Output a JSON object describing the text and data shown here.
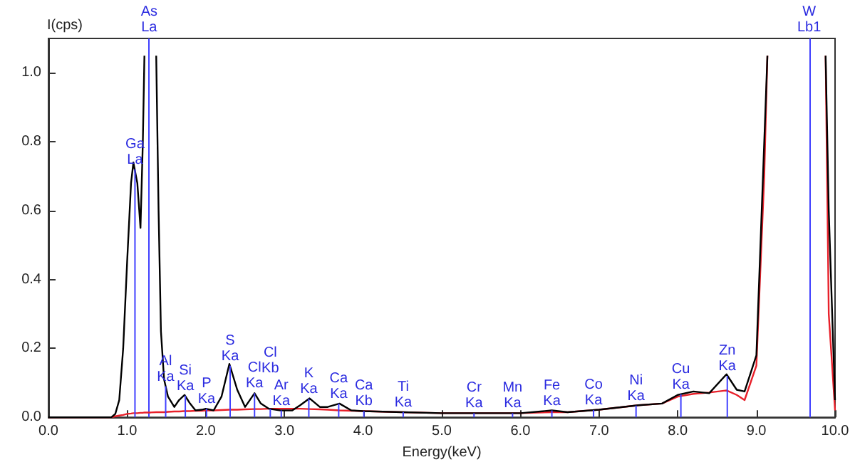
{
  "chart_data": {
    "type": "line",
    "xlabel": "Energy(keV)",
    "ylabel": "I(cps)",
    "x": [
      0,
      0.5,
      0.8,
      0.85,
      0.9,
      0.95,
      1.0,
      1.05,
      1.08,
      1.13,
      1.17,
      1.2,
      1.22,
      1.3,
      1.37,
      1.4,
      1.43,
      1.47,
      1.52,
      1.6,
      1.66,
      1.73,
      1.8,
      1.87,
      1.95,
      2.0,
      2.1,
      2.2,
      2.3,
      2.4,
      2.5,
      2.62,
      2.7,
      2.8,
      2.95,
      3.1,
      3.2,
      3.32,
      3.45,
      3.55,
      3.7,
      3.85,
      4.0,
      4.5,
      5.0,
      5.5,
      6.0,
      6.4,
      6.6,
      7.0,
      7.5,
      7.8,
      8.0,
      8.2,
      8.4,
      8.62,
      8.75,
      8.85,
      9.0,
      9.1,
      9.14,
      9.5,
      9.88,
      9.92,
      10.0
    ],
    "series": [
      {
        "color": "#000000",
        "values": [
          0,
          0,
          0,
          0.01,
          0.05,
          0.2,
          0.45,
          0.68,
          0.74,
          0.68,
          0.55,
          0.8,
          1.05,
          null,
          1.05,
          0.6,
          0.25,
          0.11,
          0.06,
          0.03,
          0.05,
          0.065,
          0.04,
          0.02,
          0.022,
          0.025,
          0.02,
          0.06,
          0.155,
          0.08,
          0.03,
          0.07,
          0.04,
          0.025,
          0.02,
          0.02,
          0.035,
          0.055,
          0.03,
          0.03,
          0.04,
          0.02,
          0.018,
          0.015,
          0.012,
          0.012,
          0.012,
          0.02,
          0.015,
          0.022,
          0.035,
          0.04,
          0.065,
          0.075,
          0.07,
          0.125,
          0.08,
          0.075,
          0.18,
          0.8,
          1.05,
          null,
          1.05,
          0.6,
          0.05
        ]
      },
      {
        "color": "#e8202a",
        "values": [
          0,
          0,
          0,
          0.003,
          0.005,
          0.007,
          0.01,
          0.011,
          0.012,
          0.012,
          0.013,
          0.013,
          0.014,
          0.014,
          0.015,
          0.015,
          0.015,
          0.015,
          0.016,
          0.017,
          0.017,
          0.018,
          0.018,
          0.019,
          0.019,
          0.02,
          0.02,
          0.021,
          0.022,
          0.022,
          0.023,
          0.024,
          0.024,
          0.025,
          0.025,
          0.025,
          0.025,
          0.024,
          0.023,
          0.022,
          0.02,
          0.019,
          0.018,
          0.015,
          0.012,
          0.012,
          0.012,
          0.015,
          0.015,
          0.022,
          0.035,
          0.04,
          0.06,
          0.068,
          0.072,
          0.078,
          0.065,
          0.05,
          0.15,
          0.7,
          1.05,
          null,
          1.05,
          0.3,
          0.02
        ]
      }
    ],
    "annotations": [
      {
        "text": "Ga La",
        "x": 1.1,
        "y": 0.72
      },
      {
        "text": "Al Ka",
        "x": 1.49,
        "y": 0.09
      },
      {
        "text": "Si Ka",
        "x": 1.74,
        "y": 0.063
      },
      {
        "text": "P Ka",
        "x": 2.01,
        "y": 0.025
      },
      {
        "text": "S Ka",
        "x": 2.31,
        "y": 0.15
      },
      {
        "text": "Cl Ka",
        "x": 2.62,
        "y": 0.07
      },
      {
        "text": "Cl Kb",
        "x": 2.82,
        "y": 0.024
      },
      {
        "text": "Ar Ka",
        "x": 2.96,
        "y": 0.02
      },
      {
        "text": "K Ka",
        "x": 3.31,
        "y": 0.054
      },
      {
        "text": "Ca Ka",
        "x": 3.69,
        "y": 0.04
      },
      {
        "text": "Ca Kb",
        "x": 4.01,
        "y": 0.018
      },
      {
        "text": "Ti Ka",
        "x": 4.51,
        "y": 0.015
      },
      {
        "text": "Cr Ka",
        "x": 5.41,
        "y": 0.012
      },
      {
        "text": "Mn Ka",
        "x": 5.9,
        "y": 0.012
      },
      {
        "text": "Fe Ka",
        "x": 6.4,
        "y": 0.02
      },
      {
        "text": "Co Ka",
        "x": 6.93,
        "y": 0.021
      },
      {
        "text": "Ni Ka",
        "x": 7.47,
        "y": 0.034
      },
      {
        "text": "Cu Ka",
        "x": 8.04,
        "y": 0.067
      },
      {
        "text": "Zn Ka",
        "x": 8.63,
        "y": 0.12
      }
    ],
    "ref_lines": [
      {
        "axis": "x",
        "value": 1.28,
        "label": "As La",
        "color": "#4040ff"
      },
      {
        "axis": "x",
        "value": 9.67,
        "label": "W Lb1",
        "color": "#4040ff"
      }
    ],
    "xlim": [
      0,
      10
    ],
    "ylim": [
      0,
      1.1
    ],
    "xticks": [
      {
        "value": 0,
        "label": "0.0"
      },
      {
        "value": 1,
        "label": "1.0"
      },
      {
        "value": 2,
        "label": "2.0"
      },
      {
        "value": 3,
        "label": "3.0"
      },
      {
        "value": 4,
        "label": "4.0"
      },
      {
        "value": 5,
        "label": "5.0"
      },
      {
        "value": 6,
        "label": "6.0"
      },
      {
        "value": 7,
        "label": "7.0"
      },
      {
        "value": 8,
        "label": "8.0"
      },
      {
        "value": 9,
        "label": "9.0"
      },
      {
        "value": 10,
        "label": "10.0"
      }
    ],
    "yticks": [
      {
        "value": 0,
        "label": "0.0"
      },
      {
        "value": 0.2,
        "label": "0.2"
      },
      {
        "value": 0.4,
        "label": "0.4"
      },
      {
        "value": 0.6,
        "label": "0.6"
      },
      {
        "value": 0.8,
        "label": "0.8"
      },
      {
        "value": 1,
        "label": "1.0"
      }
    ],
    "grid": false,
    "marker": "none",
    "line_style": "solid"
  }
}
